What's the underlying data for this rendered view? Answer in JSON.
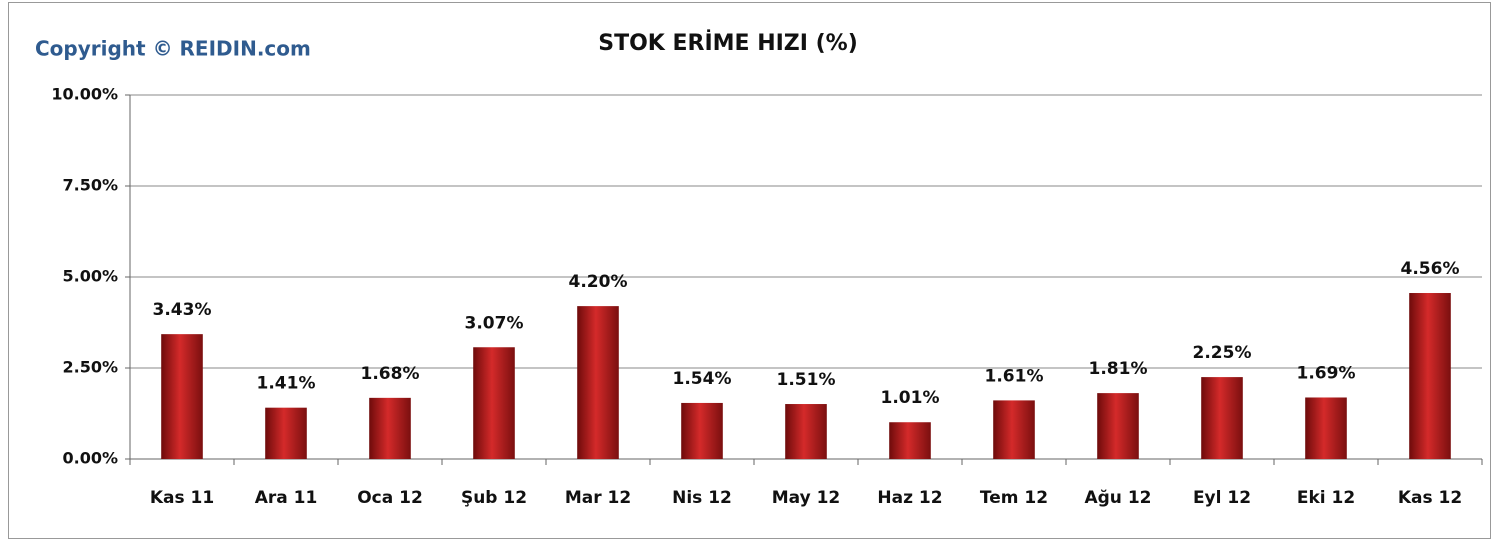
{
  "chart_data": {
    "type": "bar",
    "title": "STOK ERİME HIZI (%)",
    "annotation": "Copyright © REIDIN.com",
    "categories": [
      "Kas 11",
      "Ara 11",
      "Oca 12",
      "Şub 12",
      "Mar 12",
      "Nis 12",
      "May 12",
      "Haz 12",
      "Tem 12",
      "Ağu 12",
      "Eyl 12",
      "Eki 12",
      "Kas 12"
    ],
    "values": [
      3.43,
      1.41,
      1.68,
      3.07,
      4.2,
      1.54,
      1.51,
      1.01,
      1.61,
      1.81,
      2.25,
      1.69,
      4.56
    ],
    "value_labels": [
      "3.43%",
      "1.41%",
      "1.68%",
      "3.07%",
      "4.20%",
      "1.54%",
      "1.51%",
      "1.01%",
      "1.61%",
      "1.81%",
      "2.25%",
      "1.69%",
      "4.56%"
    ],
    "color": "#d42a2a",
    "ylim": [
      0,
      10
    ],
    "yticks": [
      {
        "value": 0,
        "label": "0.00%"
      },
      {
        "value": 2.5,
        "label": "2.50%"
      },
      {
        "value": 5,
        "label": "5.00%"
      },
      {
        "value": 7.5,
        "label": "7.50%"
      },
      {
        "value": 10,
        "label": "10.00%"
      }
    ],
    "grid": true
  }
}
